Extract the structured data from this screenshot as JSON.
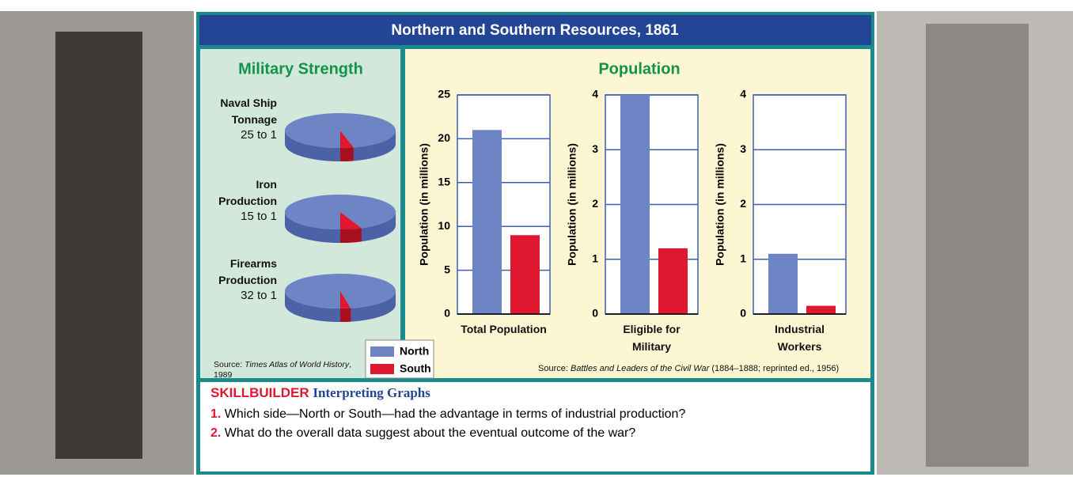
{
  "header": {
    "title": "Northern and Southern Resources, 1861"
  },
  "chart_data": [
    {
      "type": "pie3d",
      "title": "Military Strength",
      "colors": [
        "#6e85c5",
        "#e0182f"
      ],
      "pies": [
        {
          "label": "Naval Ship Tonnage",
          "ratio": "25 to 1",
          "values": [
            25,
            1
          ]
        },
        {
          "label": "Iron Production",
          "ratio": "15 to 1",
          "values": [
            15,
            1
          ]
        },
        {
          "label": "Firearms Production",
          "ratio": "32 to 1",
          "values": [
            32,
            1
          ]
        }
      ],
      "source": {
        "prefix": "Source:",
        "work": "Times Atlas of World History",
        "rest": ", 1989"
      }
    },
    {
      "type": "bar",
      "ylabel": "Population (in millions)",
      "categories": [
        "Total Population"
      ],
      "ylim": [
        0,
        25
      ],
      "yticks": [
        0,
        5,
        10,
        15,
        20,
        25
      ],
      "grid": true,
      "series": [
        {
          "name": "North",
          "color": "#6e85c5",
          "values": [
            21
          ]
        },
        {
          "name": "South",
          "color": "#e0182f",
          "values": [
            9
          ]
        }
      ]
    },
    {
      "type": "bar",
      "ylabel": "Population (in millions)",
      "categories": [
        "Eligible for Military"
      ],
      "ylim": [
        0,
        4
      ],
      "yticks": [
        0,
        1,
        2,
        3,
        4
      ],
      "grid": true,
      "series": [
        {
          "name": "North",
          "color": "#6e85c5",
          "values": [
            4
          ]
        },
        {
          "name": "South",
          "color": "#e0182f",
          "values": [
            1.2
          ]
        }
      ]
    },
    {
      "type": "bar",
      "ylabel": "Population (in millions)",
      "categories": [
        "Industrial Workers"
      ],
      "ylim": [
        0,
        4
      ],
      "yticks": [
        0,
        1,
        2,
        3,
        4
      ],
      "grid": true,
      "series": [
        {
          "name": "North",
          "color": "#6e85c5",
          "values": [
            1.1
          ]
        },
        {
          "name": "South",
          "color": "#e0182f",
          "values": [
            0.15
          ]
        }
      ]
    }
  ],
  "population_panel": {
    "title": "Population",
    "source": {
      "prefix": "Source:",
      "work": "Battles and Leaders of the Civil War",
      "rest": "(1884–1888; reprinted ed., 1956)"
    }
  },
  "skillbuilder": {
    "label": "SKILLBUILDER",
    "title": "Interpreting Graphs",
    "questions": [
      {
        "number": "1.",
        "text": "Which side—North or South—had the advantage in terms of industrial production?"
      },
      {
        "number": "2.",
        "text": "What do the overall data suggest about the eventual outcome of the war?"
      }
    ]
  }
}
